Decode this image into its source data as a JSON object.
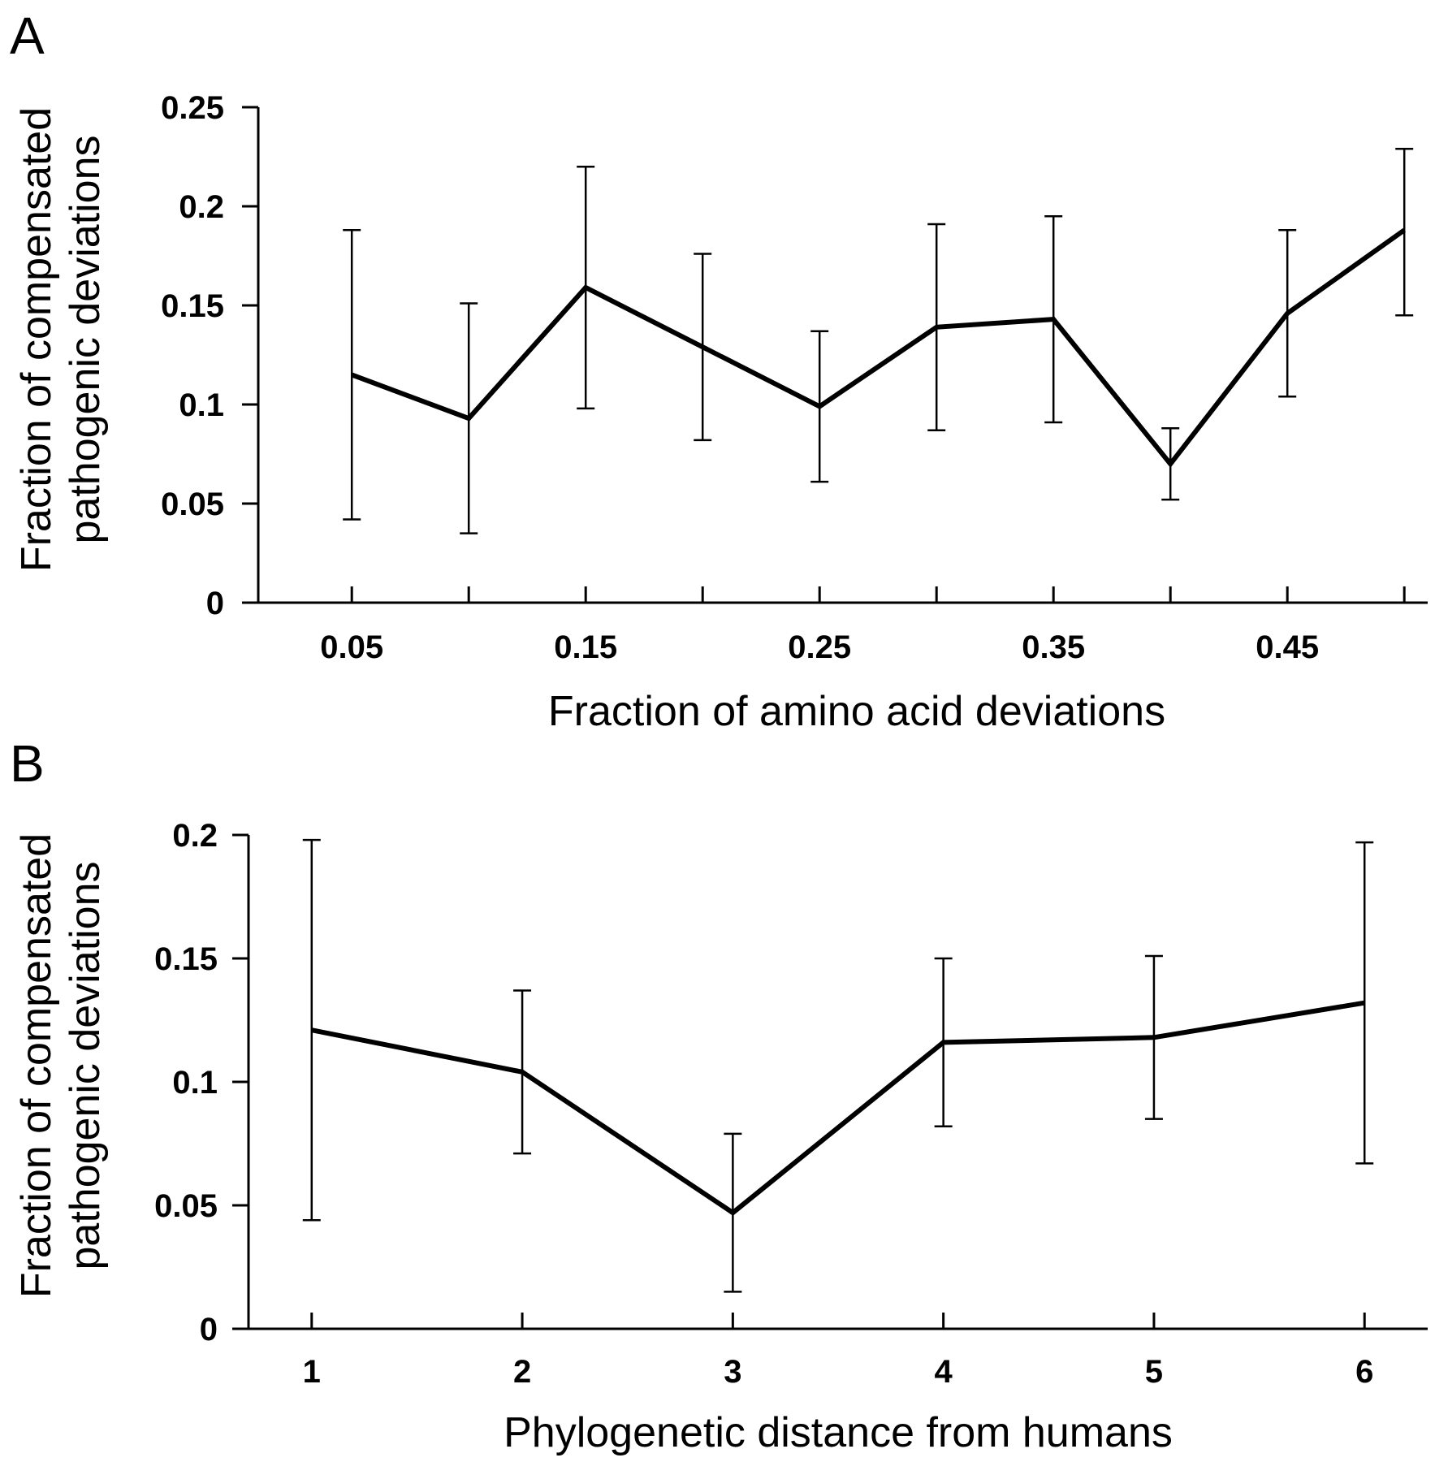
{
  "chart_data": [
    {
      "panel": "A",
      "type": "line",
      "xlabel": "Fraction of amino acid deviations",
      "ylabel": [
        "Fraction of compensated",
        "pathogenic deviations"
      ],
      "xlim": [
        0.01,
        0.51
      ],
      "ylim": [
        0,
        0.25
      ],
      "x_ticks": [
        0.05,
        0.1,
        0.15,
        0.2,
        0.25,
        0.3,
        0.35,
        0.4,
        0.45,
        0.5
      ],
      "x_tick_labels": [
        "0.05",
        "",
        "0.15",
        "",
        "0.25",
        "",
        "0.35",
        "",
        "0.45",
        ""
      ],
      "y_ticks": [
        0,
        0.05,
        0.1,
        0.15,
        0.2,
        0.25
      ],
      "y_tick_labels": [
        "0",
        "0.05",
        "0.1",
        "0.15",
        "0.2",
        "0.25"
      ],
      "x": [
        0.05,
        0.1,
        0.15,
        0.2,
        0.25,
        0.3,
        0.35,
        0.4,
        0.45,
        0.5
      ],
      "y": [
        0.115,
        0.093,
        0.159,
        0.129,
        0.099,
        0.139,
        0.143,
        0.07,
        0.146,
        0.188
      ],
      "err_low": [
        0.042,
        0.035,
        0.098,
        0.082,
        0.061,
        0.087,
        0.091,
        0.052,
        0.104,
        0.145
      ],
      "err_high": [
        0.188,
        0.151,
        0.22,
        0.176,
        0.137,
        0.191,
        0.195,
        0.088,
        0.188,
        0.229
      ],
      "grid": false,
      "legend": "none"
    },
    {
      "panel": "B",
      "type": "line",
      "xlabel": "Phylogenetic distance from humans",
      "ylabel": [
        "Fraction of compensated",
        "pathogenic deviations"
      ],
      "xlim": [
        0.7,
        6.3
      ],
      "ylim": [
        0,
        0.2
      ],
      "x_ticks": [
        1,
        2,
        3,
        4,
        5,
        6
      ],
      "x_tick_labels": [
        "1",
        "2",
        "3",
        "4",
        "5",
        "6"
      ],
      "y_ticks": [
        0,
        0.05,
        0.1,
        0.15,
        0.2
      ],
      "y_tick_labels": [
        "0",
        "0.05",
        "0.1",
        "0.15",
        "0.2"
      ],
      "x": [
        1,
        2,
        3,
        4,
        5,
        6
      ],
      "y": [
        0.121,
        0.104,
        0.047,
        0.116,
        0.118,
        0.132
      ],
      "err_low": [
        0.044,
        0.071,
        0.015,
        0.082,
        0.085,
        0.067
      ],
      "err_high": [
        0.198,
        0.137,
        0.079,
        0.15,
        0.151,
        0.197
      ],
      "grid": false,
      "legend": "none"
    }
  ]
}
